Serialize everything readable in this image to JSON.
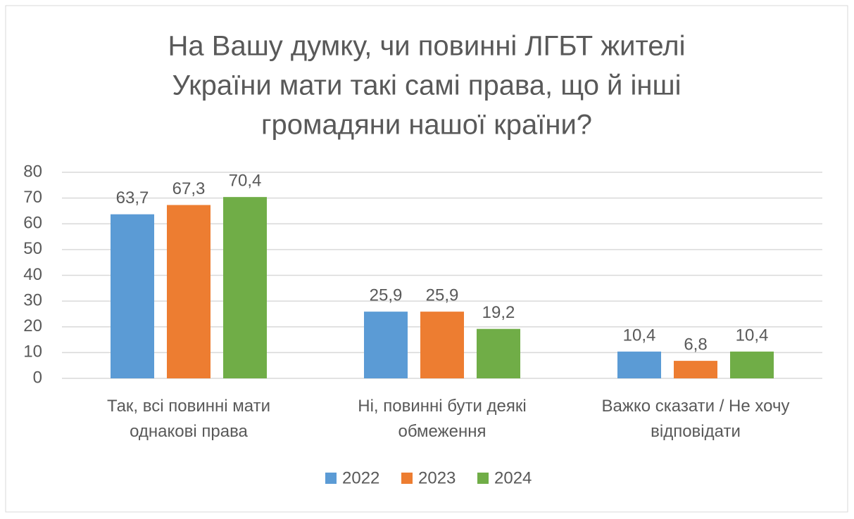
{
  "chart_data": {
    "type": "bar",
    "title": [
      "На Вашу думку, чи повинні ЛГБТ жителі",
      "України мати такі самі права, що й інші",
      "громадяни нашої країни?"
    ],
    "categories": [
      "Так, всі повинні мати однакові права",
      "Ні, повинні бути деякі обмеження",
      "Важко сказати / Не хочу відповідати"
    ],
    "series": [
      {
        "name": "2022",
        "color": "#5b9bd5",
        "values": [
          63.7,
          25.9,
          10.4
        ],
        "value_labels": [
          "63,7",
          "25,9",
          "10,4"
        ]
      },
      {
        "name": "2023",
        "color": "#ed7d31",
        "values": [
          67.3,
          25.9,
          6.8
        ],
        "value_labels": [
          "67,3",
          "25,9",
          "6,8"
        ]
      },
      {
        "name": "2024",
        "color": "#70ad47",
        "values": [
          70.4,
          19.2,
          10.4
        ],
        "value_labels": [
          "70,4",
          "19,2",
          "10,4"
        ]
      }
    ],
    "ylim": [
      0,
      80
    ],
    "yticks": [
      0,
      10,
      20,
      30,
      40,
      50,
      60,
      70,
      80
    ],
    "grid": true,
    "legend": "bottom"
  }
}
